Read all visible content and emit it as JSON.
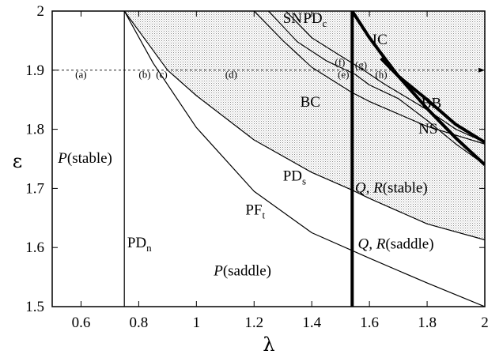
{
  "chart_data": {
    "type": "line",
    "xlabel": "λ",
    "ylabel": "ε",
    "xlim": [
      0.5,
      2.0
    ],
    "ylim": [
      1.5,
      2.0
    ],
    "xticks": [
      "0.6",
      "0.8",
      "1",
      "1.2",
      "1.4",
      "1.6",
      "1.8",
      "2"
    ],
    "xtick_values": [
      0.6,
      0.8,
      1.0,
      1.2,
      1.4,
      1.6,
      1.8,
      2.0
    ],
    "yticks": [
      "1.5",
      "1.6",
      "1.7",
      "1.8",
      "1.9",
      "2"
    ],
    "ytick_values": [
      1.5,
      1.6,
      1.7,
      1.8,
      1.9,
      2.0
    ],
    "grid": false,
    "shaded_color": "#d9d9d9",
    "series": [
      {
        "key": "pdn",
        "style": "thin",
        "points": [
          [
            0.75,
            1.5
          ],
          [
            0.75,
            2.0
          ]
        ]
      },
      {
        "key": "pft",
        "style": "thin",
        "points": [
          [
            0.75,
            2.0
          ],
          [
            0.85,
            1.912
          ],
          [
            1.0,
            1.803
          ],
          [
            1.2,
            1.695
          ],
          [
            1.4,
            1.625
          ],
          [
            1.6,
            1.582
          ],
          [
            1.8,
            1.54
          ],
          [
            2.0,
            1.5
          ]
        ]
      },
      {
        "key": "pds",
        "style": "thin",
        "points": [
          [
            0.75,
            2.0
          ],
          [
            0.9,
            1.9
          ],
          [
            1.0,
            1.857
          ],
          [
            1.2,
            1.782
          ],
          [
            1.4,
            1.727
          ],
          [
            1.54,
            1.697
          ],
          [
            1.6,
            1.683
          ],
          [
            1.8,
            1.64
          ],
          [
            2.0,
            1.613
          ]
        ]
      },
      {
        "key": "sn",
        "style": "thin",
        "points": [
          [
            1.25,
            2.0
          ],
          [
            1.35,
            1.948
          ],
          [
            1.45,
            1.916
          ],
          [
            1.55,
            1.893
          ],
          [
            1.6,
            1.875
          ],
          [
            1.7,
            1.852
          ],
          [
            1.8,
            1.815
          ],
          [
            1.9,
            1.775
          ],
          [
            2.0,
            1.74
          ]
        ]
      },
      {
        "key": "pdc",
        "style": "thin",
        "points": [
          [
            1.31,
            2.0
          ],
          [
            1.4,
            1.955
          ],
          [
            1.5,
            1.924
          ],
          [
            1.58,
            1.9
          ],
          [
            1.65,
            1.877
          ],
          [
            1.8,
            1.833
          ],
          [
            1.9,
            1.8
          ],
          [
            2.0,
            1.778
          ]
        ]
      },
      {
        "key": "bc",
        "style": "thin",
        "points": [
          [
            1.2,
            2.0
          ],
          [
            1.3,
            1.95
          ],
          [
            1.4,
            1.905
          ],
          [
            1.54,
            1.862
          ],
          [
            1.6,
            1.847
          ],
          [
            1.7,
            1.826
          ],
          [
            1.8,
            1.805
          ],
          [
            2.0,
            1.775
          ]
        ]
      },
      {
        "key": "ic",
        "style": "thick",
        "points": [
          [
            1.54,
            2.0
          ],
          [
            1.6,
            1.955
          ],
          [
            1.65,
            1.922
          ],
          [
            1.7,
            1.89
          ],
          [
            1.8,
            1.835
          ],
          [
            1.9,
            1.785
          ],
          [
            2.0,
            1.74
          ]
        ]
      },
      {
        "key": "bb",
        "style": "thick",
        "points": [
          [
            1.64,
            1.92
          ],
          [
            1.7,
            1.89
          ],
          [
            1.8,
            1.85
          ],
          [
            1.9,
            1.808
          ],
          [
            2.0,
            1.778
          ]
        ]
      },
      {
        "key": "pdv",
        "style": "thick",
        "points": [
          [
            1.54,
            1.5
          ],
          [
            1.54,
            2.0
          ]
        ]
      }
    ],
    "shaded_region": {
      "top": 2.0,
      "boundary": [
        [
          0.75,
          2.0
        ],
        [
          0.9,
          1.9
        ],
        [
          1.0,
          1.857
        ],
        [
          1.2,
          1.782
        ],
        [
          1.4,
          1.727
        ],
        [
          1.54,
          1.697
        ],
        [
          1.6,
          1.683
        ],
        [
          1.8,
          1.64
        ],
        [
          2.0,
          1.613
        ]
      ]
    },
    "guide_line": {
      "y": 1.9
    },
    "annotations": [
      {
        "key": "sn",
        "text": "SN",
        "x": 1.3,
        "y": 1.98,
        "size": "large"
      },
      {
        "key": "pdc",
        "text": "PD",
        "sub": "c",
        "x": 1.37,
        "y": 1.98,
        "size": "large"
      },
      {
        "key": "ic",
        "text": "IC",
        "x": 1.61,
        "y": 1.944,
        "size": "large"
      },
      {
        "key": "bc",
        "text": "BC",
        "x": 1.36,
        "y": 1.838,
        "size": "large"
      },
      {
        "key": "bb",
        "text": "BB",
        "x": 1.78,
        "y": 1.836,
        "size": "large"
      },
      {
        "key": "ns",
        "text": "NS",
        "x": 1.77,
        "y": 1.793,
        "size": "large"
      },
      {
        "key": "pds",
        "text": "PD",
        "sub": "s",
        "x": 1.3,
        "y": 1.713,
        "size": "large"
      },
      {
        "key": "pft",
        "text": "PF",
        "sub": "t",
        "x": 1.17,
        "y": 1.656,
        "size": "large"
      },
      {
        "key": "pdn",
        "text": "PD",
        "sub": "n",
        "x": 0.76,
        "y": 1.6,
        "size": "large"
      },
      {
        "key": "p-stable",
        "italic": "P",
        "text": "(stable)",
        "x": 0.52,
        "y": 1.743,
        "size": "large"
      },
      {
        "key": "qr-stable",
        "italic": "Q, R",
        "text": "(stable)",
        "x": 1.55,
        "y": 1.693,
        "size": "large"
      },
      {
        "key": "qr-saddle",
        "italic": "Q, R",
        "text": "(saddle)",
        "x": 1.56,
        "y": 1.598,
        "size": "large"
      },
      {
        "key": "p-saddle",
        "italic": "P",
        "text": "(saddle)",
        "x": 1.06,
        "y": 1.553,
        "size": "large"
      },
      {
        "key": "a",
        "text": "(a)",
        "x": 0.58,
        "y": 1.887,
        "size": "small"
      },
      {
        "key": "b",
        "text": "(b)",
        "x": 0.8,
        "y": 1.887,
        "size": "small"
      },
      {
        "key": "c",
        "text": "(c)",
        "x": 0.86,
        "y": 1.887,
        "size": "small"
      },
      {
        "key": "d",
        "text": "(d)",
        "x": 1.1,
        "y": 1.887,
        "size": "small"
      },
      {
        "key": "e",
        "text": "(e)",
        "x": 1.49,
        "y": 1.887,
        "size": "small"
      },
      {
        "key": "f",
        "text": "(f)",
        "x": 1.48,
        "y": 1.908,
        "size": "small"
      },
      {
        "key": "g",
        "text": "(g)",
        "x": 1.55,
        "y": 1.903,
        "size": "small"
      },
      {
        "key": "h",
        "text": "(h)",
        "x": 1.62,
        "y": 1.887,
        "size": "small"
      }
    ]
  }
}
